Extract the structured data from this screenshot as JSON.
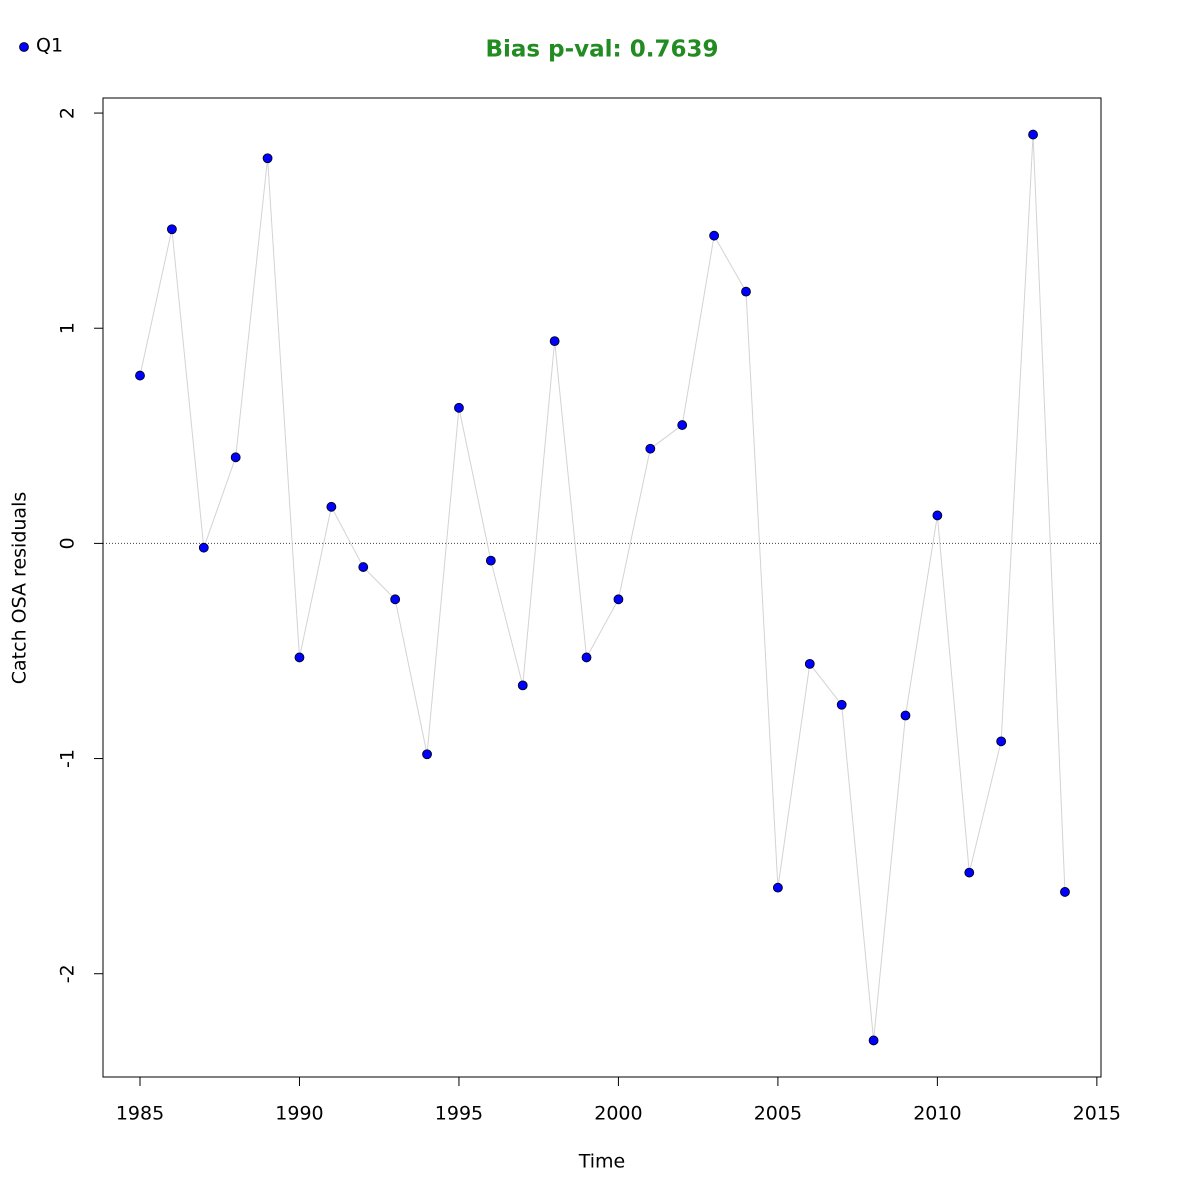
{
  "chart_data": {
    "type": "line",
    "title": "Bias p-val: 0.7639",
    "title_color": "#228b22",
    "xlabel": "Time",
    "ylabel": "Catch OSA residuals",
    "x": [
      1985,
      1986,
      1987,
      1988,
      1989,
      1990,
      1991,
      1992,
      1993,
      1994,
      1995,
      1996,
      1997,
      1998,
      1999,
      2000,
      2001,
      2002,
      2003,
      2004,
      2005,
      2006,
      2007,
      2008,
      2009,
      2010,
      2011,
      2012,
      2013,
      2014
    ],
    "series": [
      {
        "name": "Q1",
        "color": "#0000ff",
        "line_color": "#d3d3d3",
        "values": [
          0.78,
          1.46,
          -0.02,
          0.4,
          1.79,
          -0.53,
          0.17,
          -0.11,
          -0.26,
          -0.98,
          0.63,
          -0.08,
          -0.66,
          0.94,
          -0.53,
          -0.26,
          0.44,
          0.55,
          1.43,
          1.17,
          -1.6,
          -0.56,
          -0.75,
          -2.31,
          -0.8,
          0.13,
          -1.53,
          -0.92,
          1.9,
          -1.62
        ]
      }
    ],
    "xlim": [
      1983.84,
      2015.13
    ],
    "ylim": [
      -2.48,
      2.07
    ],
    "xticks": [
      1985,
      1990,
      1995,
      2000,
      2005,
      2010,
      2015
    ],
    "yticks": [
      -2,
      -1,
      0,
      1,
      2
    ],
    "reference_line": 0,
    "legend": "top-left"
  }
}
